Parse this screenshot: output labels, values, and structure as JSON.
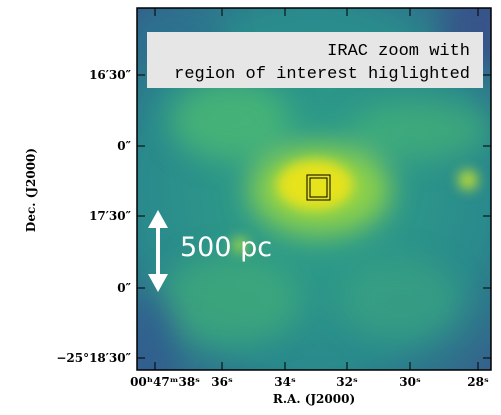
{
  "figure": {
    "annotation": [
      "IRAC zoom with",
      "region of interest higlighted"
    ],
    "scale_label": "500 pc",
    "x_axis": {
      "label": "R.A. (J2000)",
      "ticks": [
        "00ʰ47ᵐ38ˢ",
        "36ˢ",
        "34ˢ",
        "32ˢ",
        "30ˢ",
        "28ˢ"
      ]
    },
    "y_axis": {
      "label": "Dec. (J2000)",
      "ticks": [
        "16′30″",
        "0″",
        "17′30″",
        "0″",
        "−25°18′30″"
      ]
    }
  }
}
